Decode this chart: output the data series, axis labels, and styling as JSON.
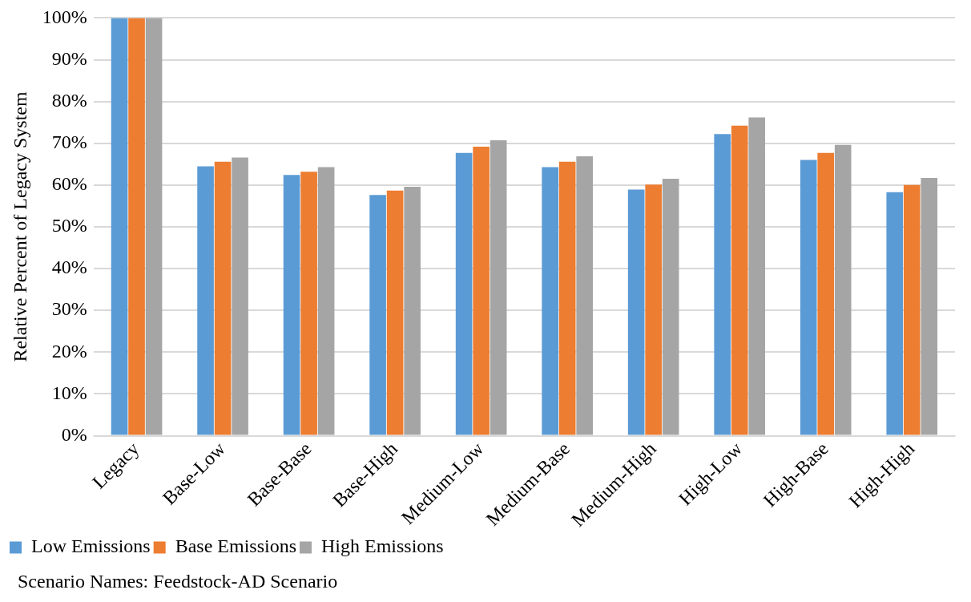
{
  "chart_data": {
    "type": "bar",
    "ylabel": "Relative Percent of Legacy System",
    "categories": [
      "Legacy",
      "Base-Low",
      "Base-Base",
      "Base-High",
      "Medium-Low",
      "Medium-Base",
      "Medium-High",
      "High-Low",
      "High-Base",
      "High-High"
    ],
    "series": [
      {
        "name": "Low Emissions",
        "color": "#5b9bd5",
        "values": [
          100,
          64.5,
          62.4,
          57.6,
          67.7,
          64.3,
          58.9,
          72.2,
          66.0,
          58.3
        ]
      },
      {
        "name": "Base Emissions",
        "color": "#ed7d31",
        "values": [
          100,
          65.6,
          63.2,
          58.7,
          69.2,
          65.6,
          60.1,
          74.2,
          67.7,
          60.0
        ]
      },
      {
        "name": "High Emissions",
        "color": "#a5a5a5",
        "values": [
          100,
          66.6,
          64.3,
          59.6,
          70.7,
          66.9,
          61.5,
          76.2,
          69.6,
          61.7
        ]
      }
    ],
    "ylim": [
      0,
      100
    ],
    "yticks": [
      {
        "value": 0,
        "label": "0%"
      },
      {
        "value": 10,
        "label": "10%"
      },
      {
        "value": 20,
        "label": "20%"
      },
      {
        "value": 30,
        "label": "30%"
      },
      {
        "value": 40,
        "label": "40%"
      },
      {
        "value": 50,
        "label": "50%"
      },
      {
        "value": 60,
        "label": "60%"
      },
      {
        "value": 70,
        "label": "70%"
      },
      {
        "value": 80,
        "label": "80%"
      },
      {
        "value": 90,
        "label": "90%"
      },
      {
        "value": 100,
        "label": "100%"
      }
    ],
    "grid": "y",
    "legend": "bottom left",
    "annotations": [
      "Scenario Names: Feedstock-AD Scenario"
    ]
  }
}
